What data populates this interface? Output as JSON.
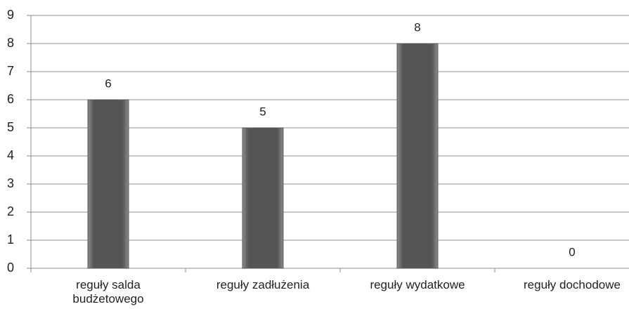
{
  "chart_data": {
    "type": "bar",
    "categories": [
      "reguły salda budżetowego",
      "reguły zadłużenia",
      "reguły wydatkowe",
      "reguły dochodowe"
    ],
    "values": [
      6,
      5,
      8,
      0
    ],
    "color": "#5a5a5a",
    "ylim": [
      0,
      9
    ],
    "yticks": [
      0,
      1,
      2,
      3,
      4,
      5,
      6,
      7,
      8,
      9
    ],
    "grid": true
  }
}
